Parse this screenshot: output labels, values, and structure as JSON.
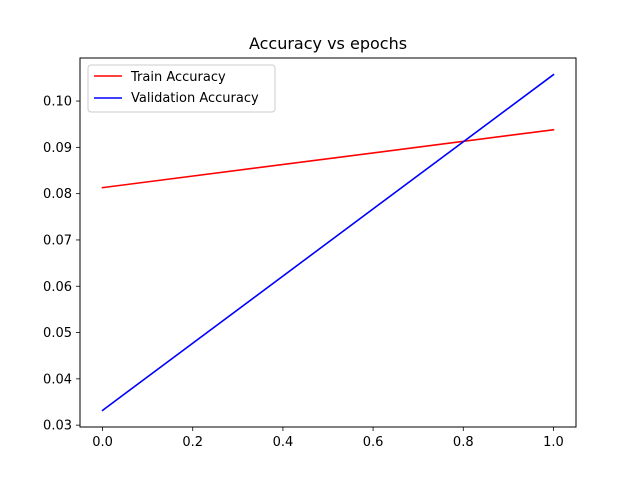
{
  "chart_data": {
    "type": "line",
    "title": "Accuracy vs epochs",
    "xlabel": "",
    "ylabel": "",
    "x": [
      0.0,
      1.0
    ],
    "series": [
      {
        "name": "Train Accuracy",
        "values": [
          0.0813,
          0.0938
        ],
        "color": "#ff0000"
      },
      {
        "name": "Validation Accuracy",
        "values": [
          0.0332,
          0.1057
        ],
        "color": "#0000ff"
      }
    ],
    "xlim": [
      -0.05,
      1.05
    ],
    "ylim": [
      0.0296,
      0.1093
    ],
    "xticks": [
      {
        "value": 0.0,
        "label": "0.0"
      },
      {
        "value": 0.2,
        "label": "0.2"
      },
      {
        "value": 0.4,
        "label": "0.4"
      },
      {
        "value": 0.6,
        "label": "0.6"
      },
      {
        "value": 0.8,
        "label": "0.8"
      },
      {
        "value": 1.0,
        "label": "1.0"
      }
    ],
    "yticks": [
      {
        "value": 0.03,
        "label": "0.03"
      },
      {
        "value": 0.04,
        "label": "0.04"
      },
      {
        "value": 0.05,
        "label": "0.05"
      },
      {
        "value": 0.06,
        "label": "0.06"
      },
      {
        "value": 0.07,
        "label": "0.07"
      },
      {
        "value": 0.08,
        "label": "0.08"
      },
      {
        "value": 0.09,
        "label": "0.09"
      },
      {
        "value": 0.1,
        "label": "0.10"
      }
    ],
    "grid": false,
    "legend": "upper-left"
  }
}
